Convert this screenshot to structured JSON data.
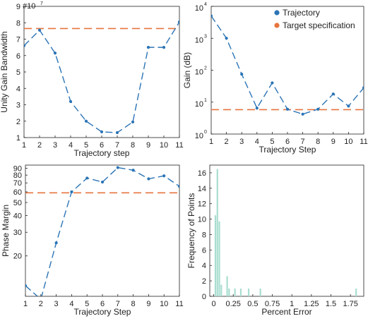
{
  "chart_data": [
    {
      "id": "ugb",
      "type": "line",
      "xlabel": "Trajectory step",
      "ylabel": "Unity Gain Bandwidth",
      "scale_label": "#10",
      "scale_exponent": "7",
      "x": [
        1,
        2,
        3,
        4,
        5,
        6,
        7,
        8,
        9,
        10,
        11
      ],
      "y": [
        6.6,
        7.55,
        6.15,
        3.2,
        2.0,
        1.35,
        1.3,
        1.95,
        6.5,
        6.5,
        8.05
      ],
      "target": 7.65,
      "xlim": [
        1,
        11
      ],
      "ylim": [
        1,
        9
      ],
      "xticks": [
        "1",
        "2",
        "3",
        "4",
        "5",
        "6",
        "7",
        "8",
        "9",
        "10",
        "11"
      ],
      "yticks": [
        1,
        2,
        3,
        4,
        5,
        6,
        7,
        8,
        9
      ],
      "ytick_labels": [
        "1",
        "2",
        "3",
        "4",
        "5",
        "6",
        "7",
        "8",
        "9"
      ],
      "yscale": "linear",
      "series_color": "#2b74b5",
      "target_color": "#e8743f"
    },
    {
      "id": "gain",
      "type": "line",
      "xlabel": "Trajectory Step",
      "ylabel": "Gain (dB)",
      "x": [
        1,
        2,
        3,
        4,
        5,
        6,
        7,
        8,
        9,
        10,
        11
      ],
      "y": [
        5000,
        1000,
        75,
        6.5,
        40,
        6.0,
        4.2,
        6.0,
        18,
        7.5,
        28
      ],
      "target": 5.8,
      "xlim": [
        1,
        11
      ],
      "ylim": [
        1,
        10000
      ],
      "yscale": "log",
      "xticks": [
        "1",
        "2",
        "3",
        "4",
        "5",
        "6",
        "7",
        "8",
        "9",
        "10",
        "11"
      ],
      "yticks": [
        1,
        10,
        100,
        1000,
        10000
      ],
      "ytick_base": "10",
      "ytick_exponents": [
        "0",
        "1",
        "2",
        "3",
        "4"
      ],
      "series_color": "#2b74b5",
      "target_color": "#e8743f",
      "legend": {
        "position": "top-right",
        "entries": [
          {
            "label": "Trajectory",
            "color": "#2b74b5"
          },
          {
            "label": "Target specification",
            "color": "#e8743f"
          }
        ]
      }
    },
    {
      "id": "pm",
      "type": "line",
      "xlabel": "Trajectory Step",
      "ylabel": "Phase Margin",
      "x": [
        1,
        2,
        3,
        4,
        5,
        6,
        7,
        8,
        9,
        10,
        11
      ],
      "y": [
        12,
        9.5,
        25,
        60,
        76,
        71,
        91,
        87,
        75,
        79,
        66
      ],
      "target": 59,
      "xlim": [
        1,
        11
      ],
      "ylim": [
        10,
        95
      ],
      "yscale": "log",
      "xticks": [
        "1",
        "2",
        "3",
        "4",
        "5",
        "6",
        "7",
        "8",
        "9",
        "10",
        "11"
      ],
      "yticks": [
        20,
        30,
        40,
        50,
        60,
        70,
        80,
        90
      ],
      "ytick_labels": [
        "20",
        "30",
        "40",
        "50",
        "60",
        "70",
        "80",
        "90"
      ],
      "series_color": "#2b74b5",
      "target_color": "#e8743f"
    },
    {
      "id": "hist",
      "type": "bar",
      "xlabel": "Percent Error",
      "ylabel": "Frequency of Points",
      "xlim": [
        -0.05,
        1.92
      ],
      "ylim": [
        0,
        17
      ],
      "xticks": [
        0,
        0.25,
        0.5,
        0.75,
        1,
        1.25,
        1.5,
        1.75
      ],
      "xtick_labels": [
        "0",
        "0.25",
        "0.5",
        "0.75",
        "1",
        "1.25",
        "1.5",
        "1.75"
      ],
      "yticks": [
        0,
        2,
        4,
        6,
        8,
        10,
        12,
        14,
        16
      ],
      "ytick_labels": [
        "0",
        "2",
        "4",
        "6",
        "8",
        "10",
        "12",
        "14",
        "16"
      ],
      "bin_width": 0.025,
      "bins": [
        {
          "x": 0.025,
          "v": 10.5
        },
        {
          "x": 0.05,
          "v": 16.5
        },
        {
          "x": 0.075,
          "v": 9.7
        },
        {
          "x": 0.1,
          "v": 1.5
        },
        {
          "x": 0.175,
          "v": 2.6
        },
        {
          "x": 0.2,
          "v": 1.0
        },
        {
          "x": 0.275,
          "v": 1.0
        },
        {
          "x": 0.35,
          "v": 1.0
        },
        {
          "x": 0.45,
          "v": 1.0
        },
        {
          "x": 0.6,
          "v": 1.0
        },
        {
          "x": 1.825,
          "v": 1.0
        }
      ],
      "bar_color": "#a8ddd0"
    }
  ]
}
